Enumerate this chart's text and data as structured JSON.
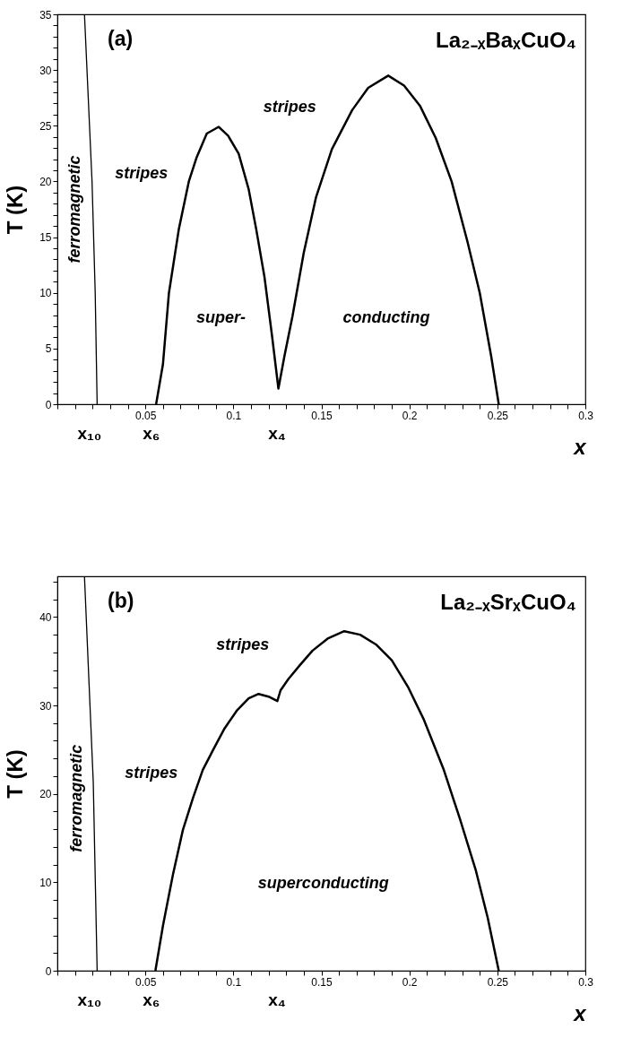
{
  "chart_data": [
    {
      "type": "line",
      "title": "(a)",
      "subtitle": "La₂₋ₓBaₓCuO₄",
      "xlabel": "x",
      "ylabel": "T (K)",
      "xlim": [
        0,
        0.3
      ],
      "ylim": [
        0,
        35
      ],
      "xticks": [
        {
          "value": 0,
          "label": null
        },
        {
          "value": 0.01,
          "label": null
        },
        {
          "value": 0.02,
          "label": null
        },
        {
          "value": 0.03,
          "label": null
        },
        {
          "value": 0.04,
          "label": null
        },
        0.05,
        {
          "value": 0.06,
          "label": null
        },
        {
          "value": 0.07,
          "label": null
        },
        {
          "value": 0.08,
          "label": null
        },
        {
          "value": 0.09,
          "label": null
        },
        0.1,
        {
          "value": 0.11,
          "label": null
        },
        {
          "value": 0.12,
          "label": null
        },
        {
          "value": 0.13,
          "label": null
        },
        {
          "value": 0.14,
          "label": null
        },
        0.15,
        {
          "value": 0.16,
          "label": null
        },
        {
          "value": 0.17,
          "label": null
        },
        {
          "value": 0.18,
          "label": null
        },
        {
          "value": 0.19,
          "label": null
        },
        0.2,
        {
          "value": 0.21,
          "label": null
        },
        {
          "value": 0.22,
          "label": null
        },
        {
          "value": 0.23,
          "label": null
        },
        {
          "value": 0.24,
          "label": null
        },
        0.25,
        {
          "value": 0.26,
          "label": null
        },
        {
          "value": 0.27,
          "label": null
        },
        {
          "value": 0.28,
          "label": null
        },
        {
          "value": 0.29,
          "label": null
        },
        0.3
      ],
      "yticks": [
        0,
        {
          "value": 1,
          "label": null
        },
        {
          "value": 2,
          "label": null
        },
        {
          "value": 3,
          "label": null
        },
        {
          "value": 4,
          "label": null
        },
        5,
        {
          "value": 6,
          "label": null
        },
        {
          "value": 7,
          "label": null
        },
        {
          "value": 8,
          "label": null
        },
        {
          "value": 9,
          "label": null
        },
        10,
        {
          "value": 11,
          "label": null
        },
        {
          "value": 12,
          "label": null
        },
        {
          "value": 13,
          "label": null
        },
        {
          "value": 14,
          "label": null
        },
        15,
        {
          "value": 16,
          "label": null
        },
        {
          "value": 17,
          "label": null
        },
        {
          "value": 18,
          "label": null
        },
        {
          "value": 19,
          "label": null
        },
        20,
        {
          "value": 21,
          "label": null
        },
        {
          "value": 22,
          "label": null
        },
        {
          "value": 23,
          "label": null
        },
        {
          "value": 24,
          "label": null
        },
        25,
        {
          "value": 26,
          "label": null
        },
        {
          "value": 27,
          "label": null
        },
        {
          "value": 28,
          "label": null
        },
        {
          "value": 29,
          "label": null
        },
        30,
        {
          "value": 31,
          "label": null
        },
        {
          "value": 32,
          "label": null
        },
        {
          "value": 33,
          "label": null
        },
        {
          "value": 34,
          "label": null
        },
        35
      ],
      "grid": false,
      "marker": "none",
      "line_style": "solid",
      "series": [
        {
          "color": "#000000",
          "x": [
            0.0154,
            0.0197,
            0.0215,
            0.0226
          ],
          "values": [
            35,
            20,
            10,
            0
          ]
        },
        {
          "color": "#000000",
          "x": [
            0.0561,
            0.06,
            0.0634,
            0.069,
            0.0747,
            0.079,
            0.0849,
            0.0917,
            0.097,
            0.103,
            0.1087,
            0.113,
            0.1177,
            0.122,
            0.1256,
            0.129,
            0.1336,
            0.14,
            0.147,
            0.156,
            0.1675,
            0.1766,
            0.188,
            0.197,
            0.206,
            0.215,
            0.224,
            0.233,
            0.24,
            0.2465,
            0.2508
          ],
          "values": [
            0,
            3.6,
            10,
            15.7,
            20,
            22.1,
            24.3,
            24.9,
            24.1,
            22.5,
            19.3,
            15.7,
            11.4,
            6.1,
            1.4,
            4.3,
            7.9,
            13.6,
            18.6,
            22.9,
            26.4,
            28.4,
            29.5,
            28.6,
            26.8,
            23.9,
            20,
            14.6,
            10,
            4.3,
            0
          ]
        }
      ],
      "annotations": [
        "ferromagnetic",
        "stripes",
        "stripes",
        "super-",
        "conducting",
        "x₁₀",
        "x₆",
        "x₄"
      ]
    },
    {
      "type": "line",
      "title": "(b)",
      "subtitle": "La₂₋ₓSrₓCuO₄",
      "xlabel": "x",
      "ylabel": "T (K)",
      "xlim": [
        0,
        0.3
      ],
      "ylim": [
        0,
        44.6
      ],
      "xticks": [
        {
          "value": 0,
          "label": null
        },
        {
          "value": 0.01,
          "label": null
        },
        {
          "value": 0.02,
          "label": null
        },
        {
          "value": 0.03,
          "label": null
        },
        {
          "value": 0.04,
          "label": null
        },
        0.05,
        {
          "value": 0.06,
          "label": null
        },
        {
          "value": 0.07,
          "label": null
        },
        {
          "value": 0.08,
          "label": null
        },
        {
          "value": 0.09,
          "label": null
        },
        0.1,
        {
          "value": 0.11,
          "label": null
        },
        {
          "value": 0.12,
          "label": null
        },
        {
          "value": 0.13,
          "label": null
        },
        {
          "value": 0.14,
          "label": null
        },
        0.15,
        {
          "value": 0.16,
          "label": null
        },
        {
          "value": 0.17,
          "label": null
        },
        {
          "value": 0.18,
          "label": null
        },
        {
          "value": 0.19,
          "label": null
        },
        0.2,
        {
          "value": 0.21,
          "label": null
        },
        {
          "value": 0.22,
          "label": null
        },
        {
          "value": 0.23,
          "label": null
        },
        {
          "value": 0.24,
          "label": null
        },
        0.25,
        {
          "value": 0.26,
          "label": null
        },
        {
          "value": 0.27,
          "label": null
        },
        {
          "value": 0.28,
          "label": null
        },
        {
          "value": 0.29,
          "label": null
        },
        0.3
      ],
      "yticks": [
        0,
        {
          "value": 2,
          "label": null
        },
        {
          "value": 4,
          "label": null
        },
        {
          "value": 6,
          "label": null
        },
        {
          "value": 8,
          "label": null
        },
        10,
        {
          "value": 12,
          "label": null
        },
        {
          "value": 14,
          "label": null
        },
        {
          "value": 16,
          "label": null
        },
        {
          "value": 18,
          "label": null
        },
        20,
        {
          "value": 22,
          "label": null
        },
        {
          "value": 24,
          "label": null
        },
        {
          "value": 26,
          "label": null
        },
        {
          "value": 28,
          "label": null
        },
        30,
        {
          "value": 32,
          "label": null
        },
        {
          "value": 34,
          "label": null
        },
        {
          "value": 36,
          "label": null
        },
        {
          "value": 38,
          "label": null
        },
        40,
        {
          "value": 42,
          "label": null
        },
        {
          "value": 44,
          "label": null
        }
      ],
      "grid": false,
      "marker": "none",
      "line_style": "solid",
      "series": [
        {
          "color": "#000000",
          "x": [
            0.0154,
            0.0204,
            0.0226
          ],
          "values": [
            44.6,
            21.3,
            0
          ]
        },
        {
          "color": "#000000",
          "x": [
            0.0557,
            0.06,
            0.0657,
            0.0713,
            0.077,
            0.0826,
            0.0883,
            0.095,
            0.1019,
            0.1087,
            0.1143,
            0.12,
            0.125,
            0.1268,
            0.1313,
            0.138,
            0.145,
            0.1539,
            0.163,
            0.172,
            0.181,
            0.19,
            0.1992,
            0.208,
            0.2196,
            0.2287,
            0.2377,
            0.2445,
            0.2508
          ],
          "values": [
            0,
            5.1,
            10.9,
            15.9,
            19.5,
            22.7,
            24.9,
            27.4,
            29.4,
            30.8,
            31.3,
            31,
            30.5,
            31.7,
            33,
            34.6,
            36.2,
            37.6,
            38.4,
            38,
            36.9,
            35.1,
            32.1,
            28.5,
            22.7,
            17.2,
            11.4,
            6,
            0
          ]
        }
      ],
      "annotations": [
        "ferromagnetic",
        "stripes",
        "stripes",
        "superconducting",
        "x₁₀",
        "x₆",
        "x₄"
      ]
    }
  ]
}
